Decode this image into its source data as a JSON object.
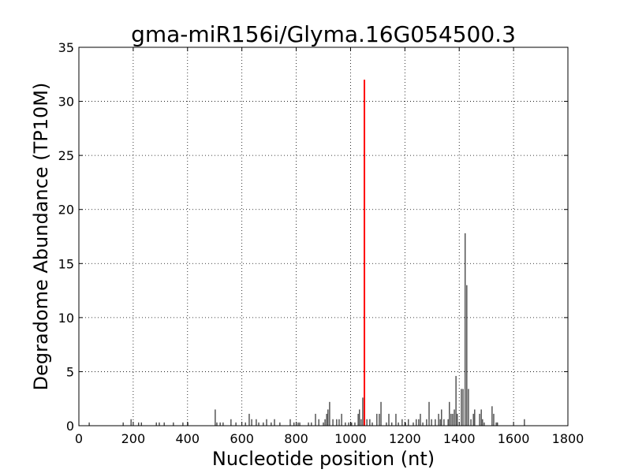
{
  "chart_data": {
    "type": "stem",
    "title": "gma-miR156i/Glyma.16G054500.3",
    "x_label": "Nucleotide position (nt)",
    "y_label": "Degradome Abundance (TP10M)",
    "xlim": [
      0,
      1800
    ],
    "xticks": [
      0,
      200,
      400,
      600,
      800,
      1000,
      1200,
      1400,
      1600,
      1800
    ],
    "ylim": [
      0,
      35
    ],
    "yticks": [
      0,
      5,
      10,
      15,
      20,
      25,
      30,
      35
    ],
    "grid": true,
    "series": [
      {
        "color": "#000000",
        "x": [
          38,
          163,
          192,
          220,
          230,
          285,
          296,
          314,
          348,
          383,
          401,
          502,
          508,
          520,
          531,
          560,
          578,
          613,
          627,
          636,
          653,
          662,
          679,
          691,
          708,
          720,
          740,
          778,
          792,
          807,
          813,
          845,
          856,
          871,
          883,
          900,
          906,
          912,
          917,
          923,
          935,
          949,
          958,
          967,
          981,
          993,
          1004,
          1016,
          1028,
          1033,
          1039,
          1045,
          1060,
          1071,
          1080,
          1097,
          1106,
          1112,
          1132,
          1141,
          1152,
          1167,
          1176,
          1190,
          1202,
          1213,
          1231,
          1242,
          1251,
          1257,
          1266,
          1280,
          1289,
          1298,
          1312,
          1324,
          1330,
          1335,
          1344,
          1359,
          1364,
          1370,
          1376,
          1382,
          1388,
          1393,
          1408,
          1414,
          1422,
          1428,
          1434,
          1443,
          1452,
          1457,
          1475,
          1481,
          1486,
          1492,
          1521,
          1527,
          1536,
          1541,
          1640
        ],
        "values": [
          0.3,
          0.3,
          0.6,
          0.3,
          0.3,
          0.3,
          0.3,
          0.3,
          0.3,
          0.3,
          0.3,
          1.5,
          0.3,
          0.3,
          0.3,
          0.6,
          0.3,
          0.3,
          1.1,
          0.6,
          0.6,
          0.3,
          0.3,
          0.6,
          0.3,
          0.6,
          0.3,
          0.6,
          0.3,
          0.3,
          0.3,
          0.3,
          0.3,
          1.1,
          0.6,
          0.3,
          0.6,
          1.1,
          1.5,
          2.2,
          0.6,
          0.6,
          0.6,
          1.1,
          0.3,
          0.3,
          0.3,
          0.3,
          1.1,
          1.5,
          0.6,
          2.6,
          0.6,
          0.6,
          0.3,
          1.1,
          1.1,
          2.2,
          0.3,
          1.1,
          0.3,
          1.1,
          0.3,
          0.6,
          0.3,
          0.6,
          0.3,
          0.6,
          0.6,
          1.1,
          0.3,
          0.6,
          2.2,
          0.6,
          0.6,
          1.1,
          0.6,
          1.5,
          0.6,
          0.6,
          2.2,
          1.1,
          1.1,
          1.5,
          4.6,
          1.1,
          3.4,
          3.4,
          17.8,
          13.0,
          3.4,
          0.6,
          1.1,
          1.5,
          1.1,
          1.5,
          0.6,
          0.3,
          1.8,
          1.1,
          0.3,
          0.3,
          0.6
        ]
      },
      {
        "color": "#ff0000",
        "x": [
          1051
        ],
        "values": [
          32
        ]
      }
    ]
  }
}
